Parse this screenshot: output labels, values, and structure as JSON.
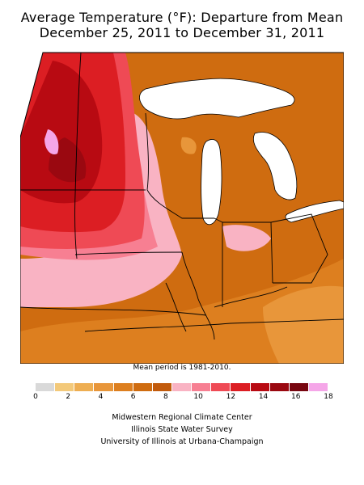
{
  "title_line1": "Average Temperature (°F): Departure from Mean",
  "title_line2": "December 25, 2011 to December 31, 2011",
  "mean_period_note": "Mean period is 1981-2010.",
  "legend": {
    "colors": [
      "#d9d9d9",
      "#f3c97a",
      "#eeae52",
      "#e8963a",
      "#dd7f1f",
      "#cf6c10",
      "#c25b0c",
      "#f9b3c3",
      "#f77f92",
      "#ef4a55",
      "#dc1e23",
      "#b80a12",
      "#9a0810",
      "#780610",
      "#f5a6e8"
    ],
    "tick_labels": [
      "0",
      "2",
      "4",
      "6",
      "8",
      "10",
      "12",
      "14",
      "16",
      "18"
    ]
  },
  "credits": {
    "line1": "Midwestern Regional Climate Center",
    "line2": "Illinois State Water Survey",
    "line3": "University of Illinois at Urbana-Champaign"
  }
}
